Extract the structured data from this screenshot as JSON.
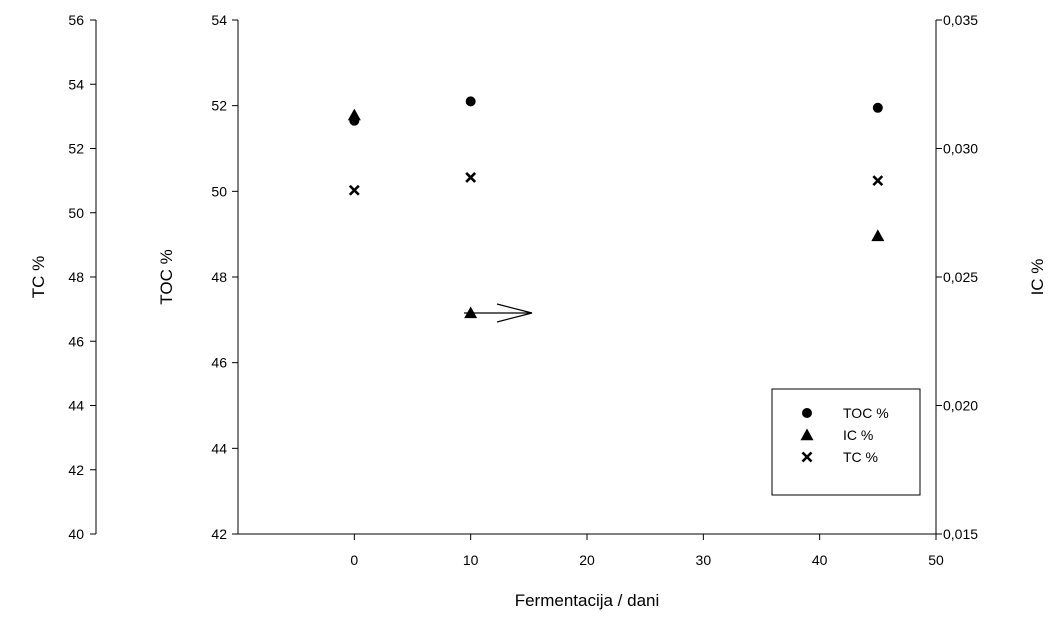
{
  "chart_data": {
    "type": "scatter",
    "title": "",
    "xlabel": "Fermentacija / dani",
    "x_ticks": [
      "0",
      "10",
      "20",
      "30",
      "40",
      "50"
    ],
    "xlim": [
      -10,
      50
    ],
    "axes": {
      "toc": {
        "label": "TOC %",
        "ylim": [
          42,
          54
        ],
        "ticks": [
          "42",
          "44",
          "46",
          "48",
          "50",
          "52",
          "54"
        ]
      },
      "tc": {
        "label": "TC %",
        "ylim": [
          40,
          56
        ],
        "ticks": [
          "40",
          "42",
          "44",
          "46",
          "48",
          "50",
          "52",
          "54",
          "56"
        ]
      },
      "ic": {
        "label": "IC %",
        "ylim": [
          0.015,
          0.035
        ],
        "ticks": [
          "0,015",
          "0,020",
          "0,025",
          "0,030",
          "0,035"
        ]
      }
    },
    "series": [
      {
        "name": "TOC %",
        "marker": "circle",
        "axis": "toc",
        "x": [
          0,
          10,
          45
        ],
        "y": [
          51.65,
          52.1,
          51.95
        ]
      },
      {
        "name": "IC %",
        "marker": "triangle",
        "axis": "ic",
        "x": [
          0,
          10,
          45
        ],
        "y": [
          0.0313,
          0.0236,
          0.0266
        ]
      },
      {
        "name": "TC %",
        "marker": "x",
        "axis": "tc",
        "x": [
          0,
          10,
          45
        ],
        "y": [
          50.7,
          51.1,
          51.0
        ]
      }
    ],
    "annotation": "arrow pointing right from IC % point at day 10 toward the right axis",
    "legend_position": "bottom-right",
    "grid": false
  }
}
